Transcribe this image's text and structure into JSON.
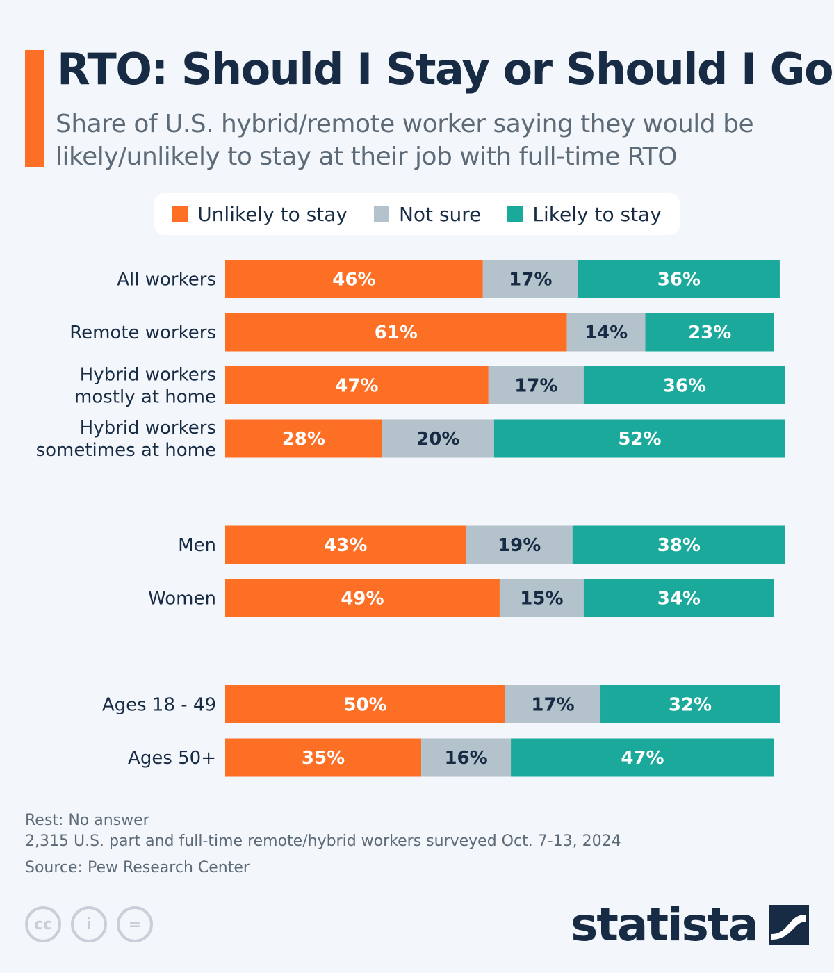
{
  "header": {
    "title": "RTO: Should I Stay or Should I Go?",
    "subtitle": "Share of U.S. hybrid/remote worker saying they would be likely/unlikely to stay at their job with full-time RTO"
  },
  "colors": {
    "accent": "#fe6f26",
    "unlikely": "#fe6f26",
    "not_sure": "#b4c2cb",
    "likely": "#1aa99b",
    "text_dark": "#172b44"
  },
  "chart_data": {
    "type": "bar",
    "orientation": "horizontal",
    "stacked": true,
    "categories": [
      "All workers",
      "Remote workers",
      "Hybrid workers mostly at home",
      "Hybrid workers sometimes at home",
      "Men",
      "Women",
      "Ages 18-49",
      "Ages 50+"
    ],
    "category_lines": [
      [
        "All workers"
      ],
      [
        "Remote workers"
      ],
      [
        "Hybrid workers",
        "mostly at home"
      ],
      [
        "Hybrid workers",
        "sometimes at home"
      ],
      [
        "Men"
      ],
      [
        "Women"
      ],
      [
        "Ages 18 - 49"
      ],
      [
        "Ages 50+"
      ]
    ],
    "groups": [
      [
        0,
        1,
        2,
        3
      ],
      [
        4,
        5
      ],
      [
        6,
        7
      ]
    ],
    "series": [
      {
        "name": "Unlikely to stay",
        "color": "#fe6f26",
        "label_color": "#ffffff",
        "values": [
          46,
          61,
          47,
          28,
          43,
          49,
          50,
          35
        ]
      },
      {
        "name": "Not sure",
        "color": "#b4c2cb",
        "label_color": "#172b44",
        "values": [
          17,
          14,
          17,
          20,
          19,
          15,
          17,
          16
        ]
      },
      {
        "name": "Likely to stay",
        "color": "#1aa99b",
        "label_color": "#ffffff",
        "values": [
          36,
          23,
          36,
          52,
          38,
          34,
          32,
          47
        ]
      }
    ],
    "value_suffix": "%",
    "xlim": [
      0,
      100
    ],
    "grid": false,
    "legend_position": "top"
  },
  "footer": {
    "note": "Rest: No answer",
    "survey": "2,315 U.S. part and full-time remote/hybrid workers surveyed Oct. 7-13, 2024",
    "source": "Source: Pew Research Center",
    "license_icons": [
      "cc-icon",
      "by-icon",
      "nd-icon"
    ],
    "license_glyphs": [
      "cc",
      "i",
      "="
    ],
    "brand": "statista"
  }
}
